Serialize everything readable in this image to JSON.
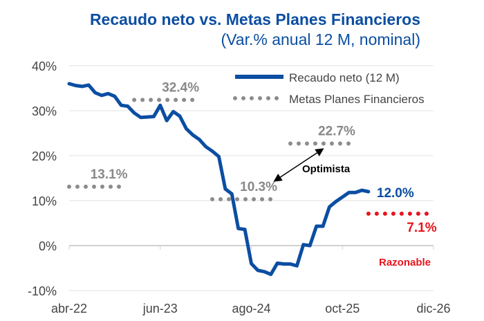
{
  "chart_data": {
    "type": "line",
    "title": "Recaudo neto vs. Metas Planes Financieros",
    "subtitle": "(Var.% anual 12 M, nominal)",
    "xlabel": "",
    "ylabel": "",
    "ylim": [
      -10,
      40
    ],
    "y_ticks": [
      "-10%",
      "0%",
      "10%",
      "20%",
      "30%",
      "40%"
    ],
    "y_tick_values": [
      -10,
      0,
      10,
      20,
      30,
      40
    ],
    "x_ticks": [
      "abr-22",
      "jun-23",
      "ago-24",
      "oct-25",
      "dic-26"
    ],
    "x_tick_dates": [
      "2022-04",
      "2023-06",
      "2024-08",
      "2025-10",
      "2026-12"
    ],
    "grid": "horizontal",
    "legend_position": "top-right",
    "series": [
      {
        "name": "Recaudo neto (12 M)",
        "color": "#0b4ea2",
        "style": "solid",
        "x": [
          "2022-04",
          "2022-05",
          "2022-06",
          "2022-07",
          "2022-08",
          "2022-09",
          "2022-10",
          "2022-11",
          "2022-12",
          "2023-01",
          "2023-02",
          "2023-03",
          "2023-04",
          "2023-05",
          "2023-06",
          "2023-07",
          "2023-08",
          "2023-09",
          "2023-10",
          "2023-11",
          "2023-12",
          "2024-01",
          "2024-02",
          "2024-03",
          "2024-04",
          "2024-05",
          "2024-06",
          "2024-07",
          "2024-08",
          "2024-09",
          "2024-10",
          "2024-11",
          "2024-12",
          "2025-01",
          "2025-02",
          "2025-03",
          "2025-04",
          "2025-05",
          "2025-06",
          "2025-07",
          "2025-08",
          "2025-09",
          "2025-10",
          "2025-11",
          "2025-12",
          "2026-01",
          "2026-02"
        ],
        "values": [
          36.0,
          35.6,
          35.4,
          35.7,
          34.0,
          33.4,
          33.8,
          33.2,
          31.2,
          31.0,
          29.5,
          28.5,
          28.6,
          28.7,
          31.2,
          27.8,
          29.8,
          28.8,
          26.0,
          24.6,
          23.6,
          22.0,
          21.0,
          19.8,
          12.6,
          11.5,
          3.8,
          3.6,
          -4.0,
          -5.5,
          -5.8,
          -6.4,
          -3.9,
          -4.1,
          -4.1,
          -4.5,
          0.2,
          0.0,
          4.3,
          4.3,
          8.6,
          9.8,
          10.8,
          11.8,
          11.8,
          12.3,
          12.0
        ]
      },
      {
        "name": "Metas Planes Financieros",
        "color": "#8c8c8c",
        "style": "dotted",
        "segments": [
          {
            "from": "2022-04",
            "to": "2022-12",
            "value": 13.1,
            "label": "13.1%"
          },
          {
            "from": "2023-02",
            "to": "2023-12",
            "value": 32.4,
            "label": "32.4%"
          },
          {
            "from": "2024-02",
            "to": "2024-12",
            "value": 10.3,
            "label": "10.3%"
          },
          {
            "from": "2025-02",
            "to": "2025-12",
            "value": 22.7,
            "label": "22.7%"
          }
        ]
      },
      {
        "color": "#e8141c",
        "style": "dotted",
        "segments": [
          {
            "from": "2026-02",
            "to": "2026-12",
            "value": 7.1,
            "label": "7.1%"
          }
        ]
      }
    ],
    "annotations": [
      {
        "text": "12.0%",
        "color": "#0b4ea2"
      },
      {
        "text": "Optimista",
        "color": "#000000",
        "arrow": "double-headed between 10.3% and 22.7%"
      },
      {
        "text": "Razonable",
        "color": "#e8141c"
      }
    ]
  }
}
